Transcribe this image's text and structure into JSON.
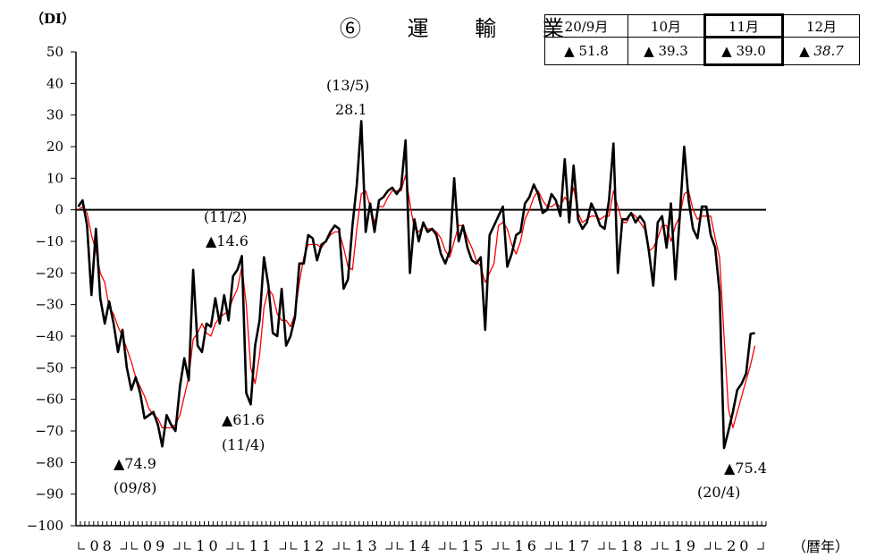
{
  "title": "⑥ 運 輸 業",
  "y_unit_label": "（DI）",
  "x_unit_label": "（暦年）",
  "summary_table": {
    "headers": [
      "20/9月",
      "10月",
      "11月",
      "12月"
    ],
    "values": [
      "▲ 51.8",
      "▲ 39.3",
      "▲ 39.0",
      "▲ 38.7"
    ],
    "highlighted_index": 2,
    "italic_index": 3
  },
  "annotations": [
    {
      "value": "▲74.9",
      "date": "(09/8)"
    },
    {
      "value": "▲14.6",
      "date": "(11/2)"
    },
    {
      "value": "▲61.6",
      "date": "(11/4)"
    },
    {
      "value": "28.1",
      "date": "(13/5)"
    },
    {
      "value": "▲75.4",
      "date": "(20/4)"
    }
  ],
  "chart_data": {
    "type": "line",
    "ylim": [
      -100,
      50
    ],
    "yticks": [
      50,
      40,
      30,
      20,
      10,
      0,
      -10,
      -20,
      -30,
      -40,
      -50,
      -60,
      -70,
      -80,
      -90,
      -100
    ],
    "ytick_labels": [
      "50",
      "40",
      "30",
      "20",
      "10",
      "0",
      "−10",
      "−20",
      "−30",
      "−40",
      "−50",
      "−60",
      "−70",
      "−80",
      "−90",
      "−100"
    ],
    "x_start": "2008-01",
    "x_end": "2020-12",
    "year_labels": [
      "08",
      "09",
      "10",
      "11",
      "12",
      "13",
      "14",
      "15",
      "16",
      "17",
      "18",
      "19",
      "20"
    ],
    "zero_line": true,
    "series": [
      {
        "color": "#000000",
        "values": [
          1,
          3,
          -5,
          -27,
          -6,
          -28,
          -36,
          -29,
          -36,
          -45,
          -38,
          -50,
          -57,
          -53,
          -58,
          -66,
          -65,
          -64,
          -68,
          -74.9,
          -65,
          -68,
          -70,
          -56,
          -47,
          -54,
          -19,
          -43,
          -45,
          -36,
          -37,
          -28,
          -36,
          -27,
          -35,
          -21,
          -19,
          -14.6,
          -58,
          -61.6,
          -43,
          -35,
          -15,
          -24,
          -39,
          -40,
          -25,
          -43,
          -40,
          -34,
          -17,
          -17,
          -8,
          -9,
          -16,
          -11,
          -10,
          -7,
          -5,
          -6,
          -25,
          -22,
          -5,
          8,
          28.1,
          -7,
          2,
          -7,
          3,
          4,
          6,
          7,
          5,
          7,
          22,
          -20,
          -3,
          -10,
          -4,
          -7,
          -6,
          -8,
          -14,
          -17,
          -13,
          10,
          -10,
          -5,
          -12,
          -16,
          -17,
          -15,
          -38,
          -8,
          -5,
          -2,
          1,
          -18,
          -14,
          -8,
          -7,
          2,
          4,
          8,
          5,
          -1,
          0,
          5,
          3,
          -2,
          16,
          -4,
          14,
          -3,
          -6,
          -4,
          2,
          -1,
          -5,
          -6,
          3,
          21,
          -20,
          -3,
          -3,
          -1,
          -4,
          -2,
          -4,
          -13,
          -24,
          -4,
          -2,
          -12,
          2,
          -22,
          -2,
          20,
          3,
          -6,
          -9,
          1,
          1,
          -8,
          -12,
          -26,
          -75.4,
          -70,
          -64,
          -57,
          -55,
          -51.8,
          -39.3,
          -39.0
        ]
      },
      {
        "color": "#ff0000",
        "values": [
          0,
          1,
          -1,
          -8,
          -13,
          -20,
          -23,
          -31,
          -33,
          -37,
          -40,
          -44,
          -48,
          -53,
          -56,
          -59,
          -63,
          -65,
          -66,
          -69,
          -69,
          -69,
          -68,
          -65,
          -59,
          -53,
          -41,
          -39,
          -36,
          -39,
          -40,
          -36,
          -34,
          -33,
          -32,
          -28,
          -25,
          -18,
          -30,
          -50,
          -55,
          -46,
          -31,
          -25,
          -27,
          -33,
          -35,
          -35,
          -37,
          -33,
          -23,
          -15,
          -11,
          -11,
          -11,
          -12,
          -10,
          -8,
          -7,
          -7,
          -12,
          -18,
          -19,
          -6,
          5,
          6,
          1,
          -4,
          1,
          1,
          4,
          6,
          6,
          6,
          11,
          2,
          -6,
          -7,
          -5,
          -6,
          -6,
          -7,
          -9,
          -13,
          -15,
          -10,
          -5,
          -5,
          -9,
          -12,
          -16,
          -18,
          -23,
          -20,
          -17,
          -5,
          -4,
          -6,
          -11,
          -14,
          -10,
          -3,
          0,
          4,
          6,
          3,
          1,
          1,
          2,
          1,
          4,
          2,
          7,
          -1,
          -4,
          -3,
          -2,
          -2,
          -3,
          -2,
          -2,
          6,
          1,
          -4,
          -4,
          -1,
          -2,
          -4,
          -6,
          -13,
          -12,
          -9,
          -5,
          -5,
          -10,
          -5,
          -2,
          5,
          6,
          0,
          -3,
          -2,
          -2,
          -2,
          -9,
          -15,
          -40,
          -63,
          -69,
          -64,
          -59,
          -54,
          -49,
          -43
        ]
      }
    ]
  }
}
